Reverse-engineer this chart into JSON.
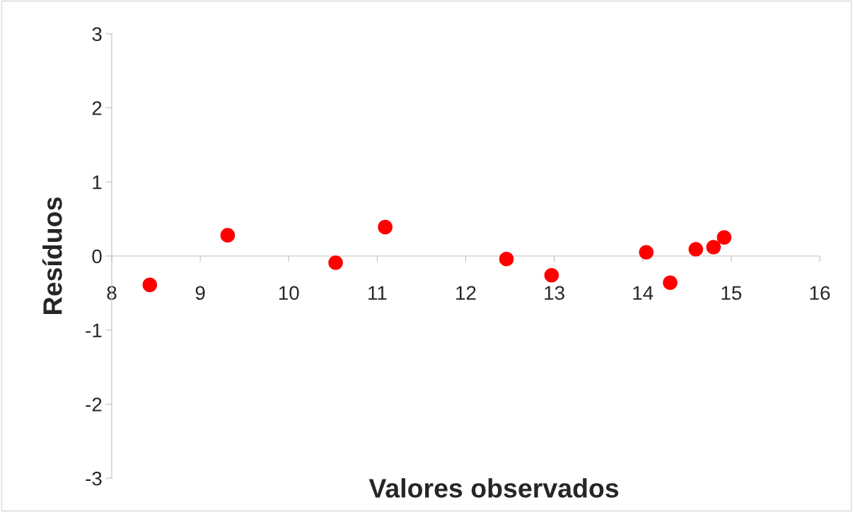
{
  "chart_data": {
    "type": "scatter",
    "xlabel": "Valores observados",
    "ylabel": "Resíduos",
    "x": [
      8.43,
      9.31,
      10.53,
      11.09,
      12.46,
      12.97,
      14.04,
      14.31,
      14.6,
      14.8,
      14.92
    ],
    "series": [
      {
        "color": "#ff0000",
        "values": [
          -0.39,
          0.28,
          -0.09,
          0.39,
          -0.04,
          -0.26,
          0.05,
          -0.36,
          0.09,
          0.12,
          0.25
        ]
      }
    ],
    "xlim": [
      8,
      16
    ],
    "xticks": [
      8,
      9,
      10,
      11,
      12,
      13,
      14,
      15,
      16
    ],
    "ylim": [
      -3,
      3
    ],
    "yticks": [
      -3,
      -2,
      -1,
      0,
      1,
      2,
      3
    ],
    "grid": false,
    "legend": false,
    "marker": "circle"
  }
}
